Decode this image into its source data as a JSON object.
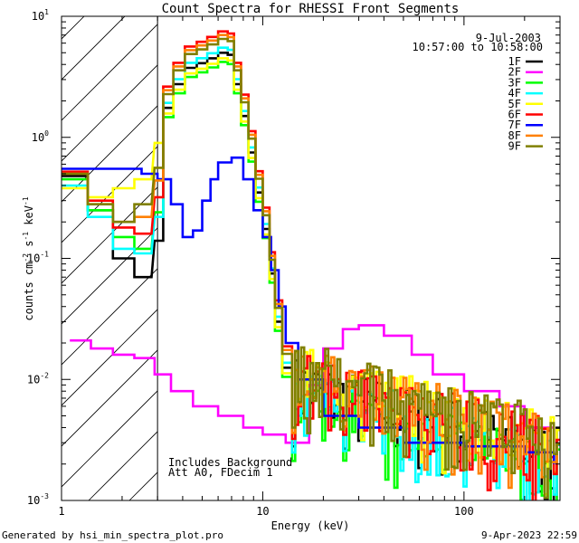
{
  "chart_data": {
    "type": "line",
    "title": "Count Spectra for RHESSI Front Segments",
    "xlabel": "Energy (keV)",
    "ylabel_parts": {
      "pre": "counts cm",
      "exp1": "-2",
      "mid": " s",
      "exp2": "-1",
      "mid2": " keV",
      "exp3": "-1"
    },
    "xscale": "log",
    "yscale": "log",
    "xlim": [
      1,
      300
    ],
    "ylim": [
      0.001,
      10
    ],
    "x_ticks": [
      {
        "v": 1,
        "label": "1"
      },
      {
        "v": 10,
        "label": "10"
      },
      {
        "v": 100,
        "label": "100"
      }
    ],
    "y_ticks": [
      {
        "v": 0.001,
        "base": "10",
        "exp": "-3"
      },
      {
        "v": 0.01,
        "base": "10",
        "exp": "-2"
      },
      {
        "v": 0.1,
        "base": "10",
        "exp": "-1"
      },
      {
        "v": 1,
        "base": "10",
        "exp": "0"
      },
      {
        "v": 10,
        "base": "10",
        "exp": "1"
      }
    ],
    "hatched_region": [
      1,
      3
    ],
    "annotations": {
      "date": "9-Jul-2003",
      "time_range": "10:57:00 to 10:58:00",
      "note1": "Includes Background",
      "note2": "Att A0, FDecim 1"
    },
    "legend_position": "top-right",
    "series": [
      {
        "name": "1F",
        "color": "#000000",
        "peak": 5.0,
        "low": [
          0.48,
          0.25,
          0.1,
          0.07
        ],
        "lowtail": 0.008
      },
      {
        "name": "2F",
        "color": "#ff00ff",
        "points": [
          [
            1.1,
            0.021
          ],
          [
            1.4,
            0.018
          ],
          [
            1.8,
            0.016
          ],
          [
            2.3,
            0.015
          ],
          [
            2.9,
            0.011
          ],
          [
            3.5,
            0.008
          ],
          [
            4.5,
            0.006
          ],
          [
            6,
            0.005
          ],
          [
            8,
            0.004
          ],
          [
            10,
            0.0035
          ],
          [
            13,
            0.003
          ],
          [
            17,
            0.009
          ],
          [
            20,
            0.018
          ],
          [
            25,
            0.026
          ],
          [
            30,
            0.028
          ],
          [
            40,
            0.023
          ],
          [
            55,
            0.016
          ],
          [
            70,
            0.011
          ],
          [
            100,
            0.008
          ],
          [
            150,
            0.006
          ],
          [
            200,
            0.004
          ],
          [
            280,
            0.0028
          ]
        ]
      },
      {
        "name": "3F",
        "color": "#00ff00",
        "peak": 4.2,
        "low": [
          0.45,
          0.25,
          0.15,
          0.12
        ],
        "lowtail": 0.006
      },
      {
        "name": "4F",
        "color": "#00ffff",
        "peak": 5.5,
        "low": [
          0.4,
          0.22,
          0.12,
          0.11
        ],
        "lowtail": 0.007
      },
      {
        "name": "5F",
        "color": "#ffff00",
        "peak": 4.5,
        "low": [
          0.38,
          0.32,
          0.38,
          0.45
        ],
        "lowtail": 0.01
      },
      {
        "name": "6F",
        "color": "#ff0000",
        "peak": 7.5,
        "low": [
          0.52,
          0.3,
          0.18,
          0.16
        ],
        "lowtail": 0.009
      },
      {
        "name": "7F",
        "color": "#0000ff",
        "points": [
          [
            1,
            0.55
          ],
          [
            1.5,
            0.55
          ],
          [
            2,
            0.55
          ],
          [
            2.5,
            0.5
          ],
          [
            3,
            0.45
          ],
          [
            3.5,
            0.28
          ],
          [
            4,
            0.15
          ],
          [
            4.5,
            0.17
          ],
          [
            5,
            0.3
          ],
          [
            5.5,
            0.45
          ],
          [
            6,
            0.62
          ],
          [
            7,
            0.68
          ],
          [
            8,
            0.45
          ],
          [
            9,
            0.25
          ],
          [
            10,
            0.15
          ],
          [
            11,
            0.08
          ],
          [
            12,
            0.04
          ],
          [
            13,
            0.02
          ],
          [
            15,
            0.01
          ],
          [
            20,
            0.005
          ],
          [
            30,
            0.004
          ],
          [
            50,
            0.003
          ],
          [
            100,
            0.0028
          ],
          [
            200,
            0.0025
          ],
          [
            280,
            0.002
          ]
        ]
      },
      {
        "name": "8F",
        "color": "#ff8000",
        "peak": 7.0,
        "low": [
          0.5,
          0.28,
          0.2,
          0.22
        ],
        "lowtail": 0.01
      },
      {
        "name": "9F",
        "color": "#808000",
        "peak": 6.5,
        "low": [
          0.5,
          0.28,
          0.2,
          0.28
        ],
        "lowtail": 0.011
      }
    ]
  },
  "footer": {
    "left": "Generated by hsi_min_spectra_plot.pro",
    "right": "9-Apr-2023 22:59"
  }
}
